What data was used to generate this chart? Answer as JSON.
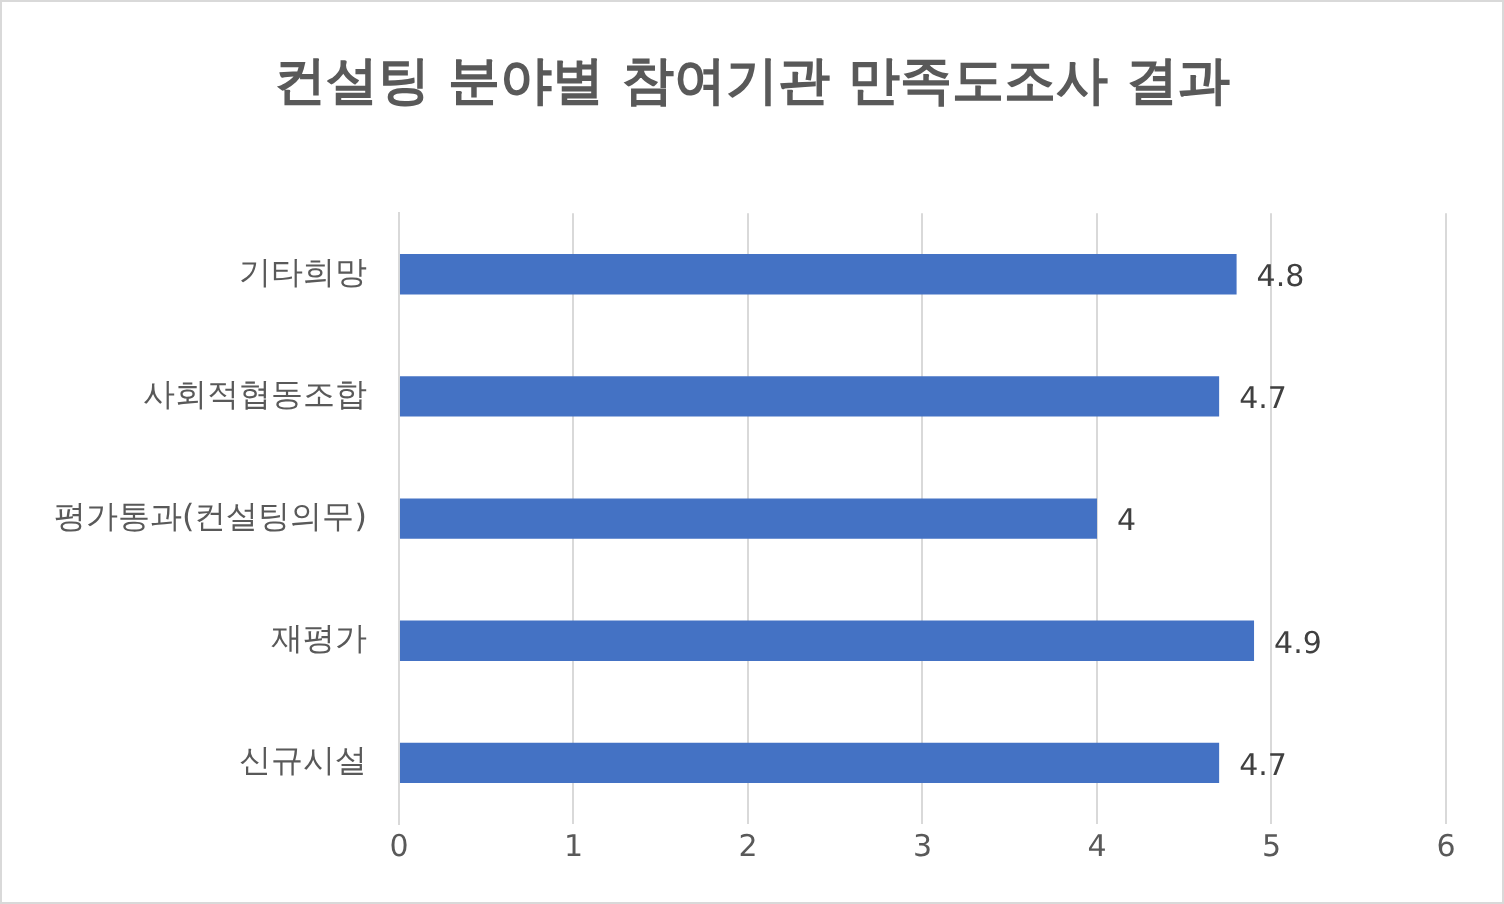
{
  "chart_data": {
    "type": "bar",
    "orientation": "horizontal",
    "title": "컨설팅 분야별 참여기관 만족도조사 결과",
    "categories": [
      "기타희망",
      "사회적협동조합",
      "평가통과(컨설팅의무)",
      "재평가",
      "신규시설"
    ],
    "values": [
      4.8,
      4.7,
      4,
      4.9,
      4.7
    ],
    "color": "#4472c4",
    "xlim": [
      0,
      6
    ],
    "xticks": [
      0,
      1,
      2,
      3,
      4,
      5,
      6
    ],
    "grid": "x",
    "data_labels": true,
    "legend": false
  }
}
